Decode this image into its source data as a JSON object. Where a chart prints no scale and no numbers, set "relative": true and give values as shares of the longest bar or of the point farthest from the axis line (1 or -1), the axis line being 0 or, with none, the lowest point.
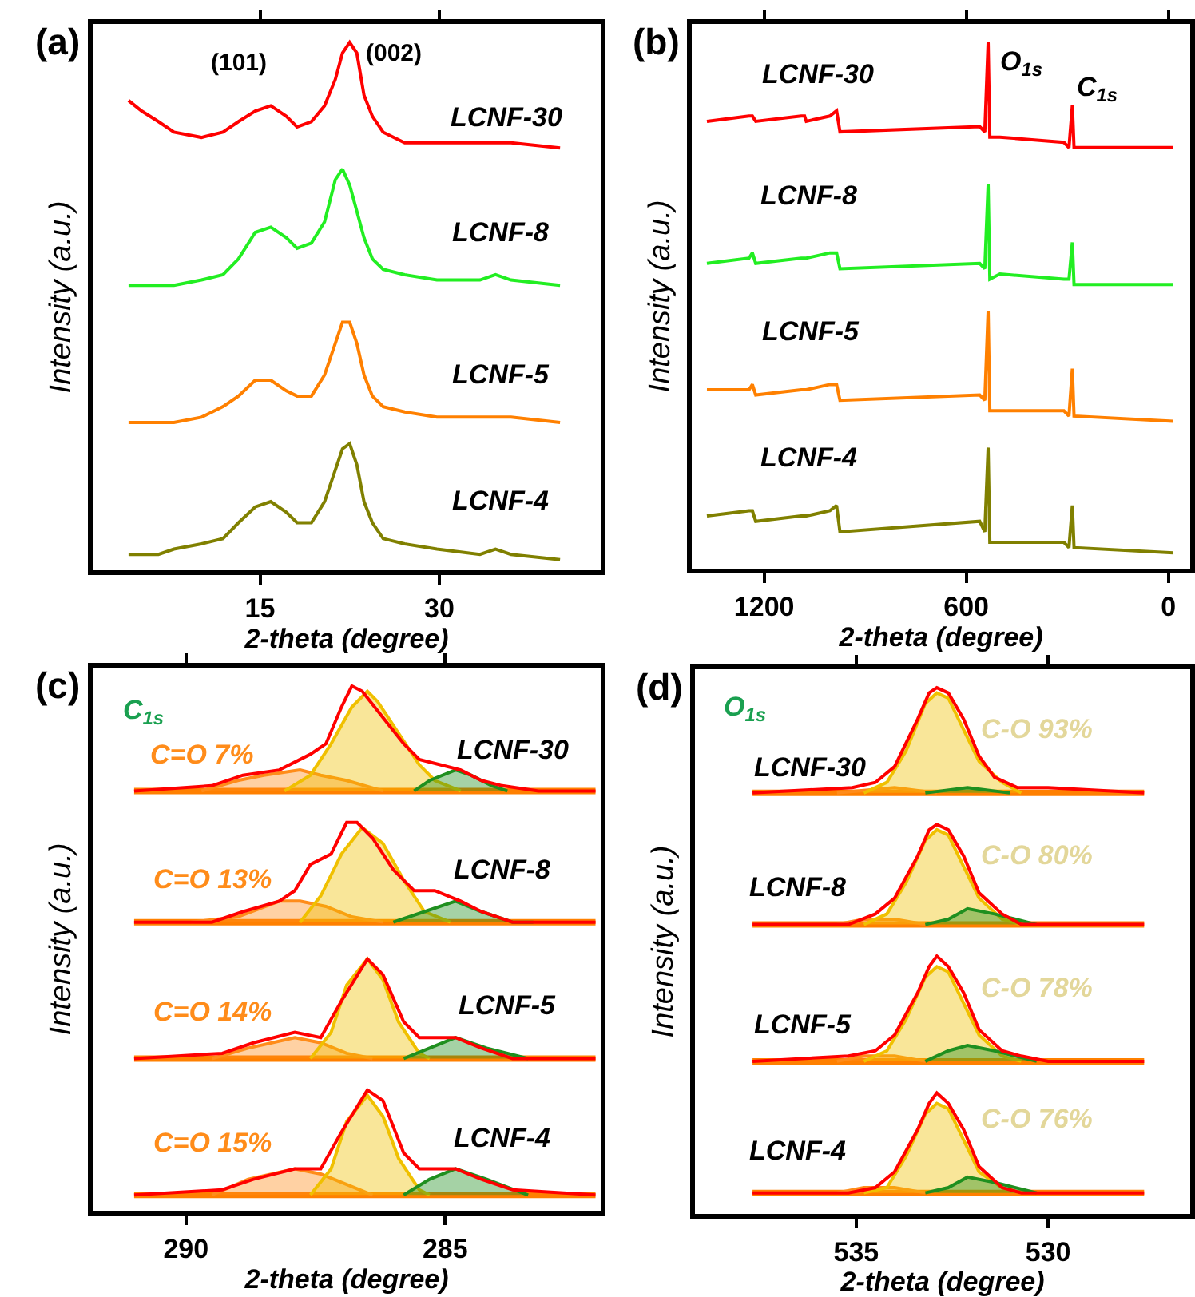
{
  "chart_data": [
    {
      "type": "line",
      "relative": true,
      "title": "(a)",
      "xlabel": "2-theta (degree)",
      "ylabel": "Intensity (a.u.)",
      "xlim": [
        1,
        43.5
      ],
      "xticks": [
        15,
        30
      ],
      "x": [
        4.0,
        5.1,
        6.5,
        7.8,
        10.1,
        11.9,
        13.2,
        14.6,
        15.9,
        17.2,
        18.1,
        19.3,
        20.4,
        21.3,
        21.9,
        22.5,
        23.1,
        23.7,
        24.4,
        25.3,
        27.1,
        29.8,
        33.4,
        34.7,
        36.0,
        40.1
      ],
      "series": [
        {
          "color": "#ff0000",
          "values": [
            0.89,
            0.87,
            0.85,
            0.83,
            0.82,
            0.83,
            0.85,
            0.87,
            0.88,
            0.86,
            0.84,
            0.85,
            0.88,
            0.93,
            0.98,
            1.0,
            0.98,
            0.9,
            0.86,
            0.83,
            0.81,
            0.81,
            0.81,
            0.81,
            0.81,
            0.8
          ]
        },
        {
          "color": "#22ee22",
          "values": [
            0.54,
            0.54,
            0.54,
            0.54,
            0.55,
            0.56,
            0.59,
            0.64,
            0.65,
            0.63,
            0.61,
            0.62,
            0.66,
            0.74,
            0.76,
            0.73,
            0.68,
            0.63,
            0.59,
            0.57,
            0.56,
            0.55,
            0.55,
            0.56,
            0.55,
            0.54
          ]
        },
        {
          "color": "#ff8000",
          "values": [
            0.28,
            0.28,
            0.28,
            0.28,
            0.29,
            0.31,
            0.33,
            0.36,
            0.36,
            0.34,
            0.33,
            0.33,
            0.37,
            0.43,
            0.47,
            0.47,
            0.43,
            0.37,
            0.33,
            0.31,
            0.3,
            0.29,
            0.29,
            0.29,
            0.29,
            0.28
          ]
        },
        {
          "color": "#808000",
          "values": [
            0.03,
            0.03,
            0.03,
            0.04,
            0.05,
            0.06,
            0.09,
            0.12,
            0.13,
            0.11,
            0.09,
            0.09,
            0.13,
            0.19,
            0.23,
            0.24,
            0.2,
            0.13,
            0.09,
            0.06,
            0.05,
            0.04,
            0.03,
            0.04,
            0.03,
            0.02
          ]
        }
      ],
      "annotations": [
        "(101)",
        "(002)",
        "LCNF-30",
        "LCNF-8",
        "LCNF-5",
        "LCNF-4"
      ]
    },
    {
      "type": "line",
      "relative": true,
      "title": "(b)",
      "xlabel": "2-theta (degree)",
      "ylabel": "Intensity (a.u.)",
      "xlim": [
        1415,
        -65
      ],
      "xticks": [
        1200,
        600,
        0
      ],
      "x": [
        1370,
        1245,
        1235,
        1225,
        1090,
        1080,
        1075,
        1005,
        985,
        975,
        560,
        545,
        535,
        530,
        500,
        310,
        295,
        285,
        280,
        -15
      ],
      "series": [
        {
          "color": "#ff0000",
          "values": [
            0.85,
            0.86,
            0.86,
            0.85,
            0.86,
            0.86,
            0.85,
            0.86,
            0.87,
            0.83,
            0.84,
            0.83,
            1.0,
            0.82,
            0.82,
            0.81,
            0.8,
            0.88,
            0.8,
            0.8
          ]
        },
        {
          "color": "#22ee22",
          "values": [
            0.58,
            0.59,
            0.6,
            0.58,
            0.59,
            0.59,
            0.59,
            0.6,
            0.6,
            0.57,
            0.58,
            0.57,
            0.73,
            0.55,
            0.56,
            0.55,
            0.55,
            0.62,
            0.54,
            0.54
          ]
        },
        {
          "color": "#ff8000",
          "values": [
            0.34,
            0.34,
            0.35,
            0.33,
            0.34,
            0.34,
            0.34,
            0.35,
            0.35,
            0.32,
            0.33,
            0.32,
            0.49,
            0.3,
            0.3,
            0.3,
            0.29,
            0.38,
            0.29,
            0.28
          ]
        },
        {
          "color": "#808000",
          "values": [
            0.1,
            0.11,
            0.11,
            0.09,
            0.1,
            0.1,
            0.1,
            0.11,
            0.12,
            0.07,
            0.09,
            0.07,
            0.23,
            0.05,
            0.05,
            0.05,
            0.04,
            0.12,
            0.04,
            0.03
          ]
        }
      ],
      "annotations": [
        "LCNF-30",
        "LCNF-8",
        "LCNF-5",
        "LCNF-4",
        "O$_{1s}$",
        "C$_{1s}$"
      ]
    },
    {
      "type": "line",
      "relative": true,
      "title": "(c)",
      "xlabel": "2-theta (degree)",
      "ylabel": "Intensity (a.u.)",
      "xlim": [
        291.8,
        282
      ],
      "xticks": [
        290,
        285
      ],
      "series": [
        {
          "type": "line",
          "color": "#ff8000",
          "x": [
            291.0,
            282.1
          ],
          "values": [
            0.8,
            0.8
          ]
        },
        {
          "type": "line",
          "color": "#ff8000",
          "x": [
            291.0,
            282.1
          ],
          "values": [
            0.55,
            0.55
          ]
        },
        {
          "type": "line",
          "color": "#ff8000",
          "x": [
            291.0,
            282.1
          ],
          "values": [
            0.29,
            0.29
          ]
        },
        {
          "type": "line",
          "color": "#ff8000",
          "x": [
            291.0,
            282.1
          ],
          "values": [
            0.03,
            0.03
          ]
        },
        {
          "type": "area",
          "color": "#ff8c1a",
          "x": [
            289.7,
            289.0,
            288.5,
            287.8,
            287.4,
            286.9,
            286.2,
            null,
            289.9,
            289.0,
            288.2,
            287.8,
            287.3,
            286.8,
            286.2,
            null,
            289.5,
            288.8,
            287.9,
            287.4,
            286.9,
            286.4,
            null,
            289.5,
            288.8,
            287.9,
            287.4,
            286.9,
            286.4
          ],
          "values": [
            0.8,
            0.82,
            0.83,
            0.84,
            0.83,
            0.82,
            0.8,
            null,
            0.55,
            0.56,
            0.59,
            0.59,
            0.58,
            0.56,
            0.55,
            null,
            0.29,
            0.31,
            0.33,
            0.32,
            0.3,
            0.29,
            null,
            0.03,
            0.06,
            0.08,
            0.07,
            0.05,
            0.03
          ]
        },
        {
          "type": "area",
          "color": "#f0c000",
          "x": [
            288.1,
            287.6,
            287.2,
            286.8,
            286.5,
            286.3,
            285.9,
            285.5,
            285.2,
            284.7,
            null,
            287.8,
            287.4,
            287.0,
            286.6,
            286.2,
            285.8,
            285.4,
            284.9,
            null,
            287.6,
            287.2,
            286.9,
            286.5,
            286.2,
            285.9,
            285.5,
            285.3,
            null,
            287.6,
            287.2,
            286.9,
            286.5,
            286.2,
            285.9,
            285.5,
            285.3
          ],
          "values": [
            0.8,
            0.83,
            0.89,
            0.96,
            0.99,
            0.97,
            0.91,
            0.85,
            0.82,
            0.8,
            null,
            0.55,
            0.6,
            0.68,
            0.73,
            0.7,
            0.63,
            0.57,
            0.55,
            null,
            0.29,
            0.34,
            0.43,
            0.48,
            0.44,
            0.36,
            0.3,
            0.29,
            null,
            0.03,
            0.08,
            0.17,
            0.22,
            0.18,
            0.1,
            0.04,
            0.03
          ]
        },
        {
          "type": "area",
          "color": "#1f8f1f",
          "x": [
            285.6,
            285.3,
            284.8,
            284.5,
            284.1,
            283.8,
            null,
            286.0,
            285.4,
            284.8,
            284.3,
            283.7,
            283.3,
            null,
            285.8,
            285.3,
            284.8,
            284.2,
            283.4,
            null,
            285.8,
            285.3,
            284.8,
            284.2,
            283.4
          ],
          "values": [
            0.8,
            0.82,
            0.84,
            0.83,
            0.81,
            0.8,
            null,
            0.55,
            0.57,
            0.59,
            0.57,
            0.55,
            0.55,
            null,
            0.29,
            0.31,
            0.33,
            0.31,
            0.29,
            null,
            0.03,
            0.06,
            0.08,
            0.06,
            0.03
          ]
        },
        {
          "type": "line",
          "color": "#ff0000",
          "x": [
            291.0,
            289.5,
            288.9,
            288.2,
            287.6,
            287.3,
            287.0,
            286.8,
            286.6,
            286.2,
            285.8,
            285.5,
            285.1,
            284.7,
            284.3,
            283.9,
            283.2,
            282.1,
            null,
            291.0,
            289.5,
            288.9,
            288.2,
            287.9,
            287.6,
            287.2,
            286.9,
            286.7,
            286.4,
            286.0,
            285.6,
            285.2,
            284.7,
            284.3,
            283.7,
            283.2,
            282.1,
            null,
            291.0,
            289.3,
            288.7,
            287.9,
            287.4,
            287.0,
            286.5,
            286.2,
            285.8,
            285.5,
            284.8,
            284.3,
            283.7,
            282.1,
            null,
            291.0,
            289.3,
            288.7,
            287.9,
            287.4,
            287.0,
            286.5,
            286.2,
            285.8,
            285.5,
            284.8,
            284.3,
            283.7,
            282.1
          ],
          "values": [
            0.8,
            0.81,
            0.83,
            0.84,
            0.87,
            0.89,
            0.96,
            1.0,
            0.99,
            0.94,
            0.89,
            0.86,
            0.85,
            0.84,
            0.82,
            0.81,
            0.8,
            0.8,
            null,
            0.55,
            0.55,
            0.57,
            0.59,
            0.61,
            0.66,
            0.68,
            0.74,
            0.74,
            0.71,
            0.65,
            0.61,
            0.61,
            0.59,
            0.57,
            0.55,
            0.55,
            0.55,
            null,
            0.29,
            0.3,
            0.32,
            0.34,
            0.33,
            0.4,
            0.48,
            0.45,
            0.36,
            0.33,
            0.33,
            0.31,
            0.29,
            0.29,
            null,
            0.03,
            0.04,
            0.06,
            0.08,
            0.08,
            0.15,
            0.23,
            0.21,
            0.11,
            0.08,
            0.08,
            0.06,
            0.04,
            0.03
          ]
        }
      ],
      "annotations": [
        "C$_{1s}$",
        "C=O 7%",
        "C=O 13%",
        "C=O 14%",
        "C=O 15%",
        "LCNF-30",
        "LCNF-8",
        "LCNF-5",
        "LCNF-4"
      ]
    },
    {
      "type": "line",
      "relative": true,
      "title": "(d)",
      "xlabel": "2-theta (degree)",
      "ylabel": "Intensity (a.u.)",
      "xlim": [
        539.2,
        526.3
      ],
      "xticks": [
        535,
        530
      ],
      "series": [
        {
          "type": "line",
          "color": "#ff8000",
          "x": [
            537.7,
            527.5
          ],
          "values": [
            0.8,
            0.8
          ]
        },
        {
          "type": "line",
          "color": "#ff8000",
          "x": [
            537.7,
            527.5
          ],
          "values": [
            0.55,
            0.55
          ]
        },
        {
          "type": "line",
          "color": "#ff8000",
          "x": [
            537.7,
            527.5
          ],
          "values": [
            0.29,
            0.29
          ]
        },
        {
          "type": "line",
          "color": "#ff8000",
          "x": [
            537.7,
            527.5
          ],
          "values": [
            0.04,
            0.04
          ]
        },
        {
          "type": "area",
          "color": "#ff8c1a",
          "x": [
            535.5,
            534.0,
            532.9,
            null,
            535.5,
            534.8,
            534.0,
            533.2,
            null,
            535.5,
            534.8,
            534.0,
            533.2,
            null,
            535.5,
            534.8,
            534.0,
            533.2
          ],
          "values": [
            0.8,
            0.81,
            0.8,
            null,
            0.55,
            0.56,
            0.56,
            0.55,
            null,
            0.29,
            0.3,
            0.3,
            0.29,
            null,
            0.04,
            0.05,
            0.05,
            0.04
          ]
        },
        {
          "type": "area",
          "color": "#f0c000",
          "x": [
            534.8,
            534.2,
            533.7,
            533.2,
            532.9,
            532.6,
            532.2,
            531.8,
            531.2,
            530.7,
            null,
            534.8,
            534.2,
            533.7,
            533.2,
            532.9,
            532.6,
            532.2,
            531.8,
            531.2,
            530.7,
            null,
            534.8,
            534.2,
            533.7,
            533.2,
            532.9,
            532.6,
            532.2,
            531.8,
            531.2,
            530.7,
            null,
            534.8,
            534.2,
            533.7,
            533.2,
            532.9,
            532.6,
            532.2,
            531.8,
            531.2,
            530.7
          ],
          "values": [
            0.8,
            0.82,
            0.88,
            0.97,
            0.99,
            0.98,
            0.92,
            0.86,
            0.82,
            0.8,
            null,
            0.55,
            0.57,
            0.63,
            0.71,
            0.73,
            0.72,
            0.66,
            0.6,
            0.56,
            0.55,
            null,
            0.29,
            0.31,
            0.37,
            0.45,
            0.47,
            0.46,
            0.4,
            0.34,
            0.3,
            0.29,
            null,
            0.04,
            0.05,
            0.11,
            0.19,
            0.21,
            0.2,
            0.14,
            0.08,
            0.05,
            0.04
          ]
        },
        {
          "type": "area",
          "color": "#1f8f1f",
          "x": [
            533.2,
            532.1,
            531.0,
            null,
            533.2,
            532.6,
            532.1,
            531.4,
            530.3,
            null,
            533.2,
            532.6,
            532.1,
            531.4,
            530.3,
            null,
            533.2,
            532.6,
            532.1,
            531.4,
            530.3
          ],
          "values": [
            0.8,
            0.81,
            0.8,
            null,
            0.55,
            0.56,
            0.58,
            0.57,
            0.55,
            null,
            0.29,
            0.31,
            0.32,
            0.31,
            0.29,
            null,
            0.04,
            0.05,
            0.07,
            0.06,
            0.04
          ]
        },
        {
          "type": "line",
          "color": "#ff0000",
          "x": [
            537.7,
            535.1,
            534.5,
            534.0,
            533.4,
            533.1,
            532.9,
            532.6,
            532.2,
            531.8,
            531.4,
            530.8,
            530.0,
            527.5,
            null,
            537.7,
            535.2,
            534.5,
            534.0,
            533.4,
            533.1,
            532.9,
            532.6,
            532.2,
            531.8,
            531.2,
            530.7,
            530.0,
            527.5,
            null,
            537.7,
            535.2,
            534.5,
            534.0,
            533.4,
            533.1,
            532.9,
            532.6,
            532.2,
            531.8,
            531.2,
            530.7,
            530.0,
            527.5,
            null,
            537.7,
            535.2,
            534.5,
            534.0,
            533.4,
            533.1,
            532.9,
            532.6,
            532.2,
            531.8,
            531.2,
            530.7,
            530.0,
            527.5
          ],
          "values": [
            0.8,
            0.81,
            0.82,
            0.85,
            0.94,
            0.99,
            1.0,
            0.99,
            0.94,
            0.87,
            0.83,
            0.81,
            0.81,
            0.8,
            null,
            0.55,
            0.55,
            0.57,
            0.6,
            0.68,
            0.73,
            0.74,
            0.73,
            0.68,
            0.61,
            0.57,
            0.55,
            0.55,
            0.55,
            null,
            0.29,
            0.3,
            0.31,
            0.34,
            0.42,
            0.47,
            0.49,
            0.47,
            0.42,
            0.35,
            0.31,
            0.3,
            0.29,
            0.29,
            null,
            0.04,
            0.04,
            0.05,
            0.08,
            0.16,
            0.21,
            0.23,
            0.21,
            0.16,
            0.09,
            0.05,
            0.04,
            0.04,
            0.04
          ]
        }
      ],
      "annotations": [
        "O$_{1s}$",
        "LCNF-30",
        "LCNF-8",
        "LCNF-5",
        "LCNF-4",
        "C-O 93%",
        "C-O 80%",
        "C-O 78%",
        "C-O 76%"
      ]
    }
  ]
}
